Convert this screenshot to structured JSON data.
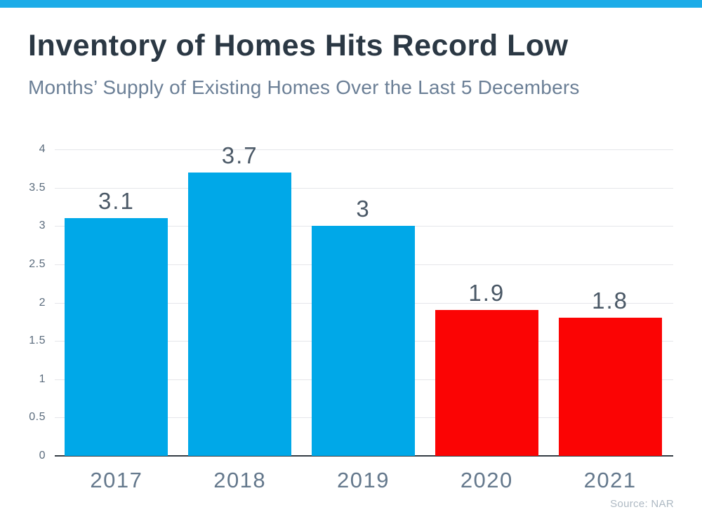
{
  "header": {
    "title": "Inventory of Homes Hits Record Low",
    "subtitle": "Months’ Supply of Existing Homes Over the Last 5 Decembers"
  },
  "colors": {
    "accent_strip": "#1cace8",
    "bar_blue": "#00a8e8",
    "bar_red": "#fb0404",
    "title_text": "#2b3844",
    "subtitle_text": "#6b7f96",
    "value_label_text": "#4a5866",
    "x_label_text": "#64788c",
    "y_tick_text": "#5a6b7c",
    "gridline": "#e5e6ea",
    "axis_line": "#343c44",
    "source_text": "#aeb9c3"
  },
  "chart_data": {
    "type": "bar",
    "title": "Inventory of Homes Hits Record Low",
    "subtitle": "Months’ Supply of Existing Homes Over the Last 5 Decembers",
    "categories": [
      "2017",
      "2018",
      "2019",
      "2020",
      "2021"
    ],
    "values": [
      3.1,
      3.7,
      3,
      1.9,
      1.8
    ],
    "value_labels": [
      "3.1",
      "3.7",
      "3",
      "1.9",
      "1.8"
    ],
    "bar_colors": [
      "#00a8e8",
      "#00a8e8",
      "#00a8e8",
      "#fb0404",
      "#fb0404"
    ],
    "xlabel": "",
    "ylabel": "",
    "ylim": [
      0,
      4
    ],
    "yticks": [
      0,
      0.5,
      1,
      1.5,
      2,
      2.5,
      3,
      3.5,
      4
    ],
    "ytick_labels": [
      "0",
      "0.5",
      "1",
      "1.5",
      "2",
      "2.5",
      "3",
      "3.5",
      "4"
    ],
    "grid": true,
    "legend": false,
    "source": "Source: NAR"
  }
}
